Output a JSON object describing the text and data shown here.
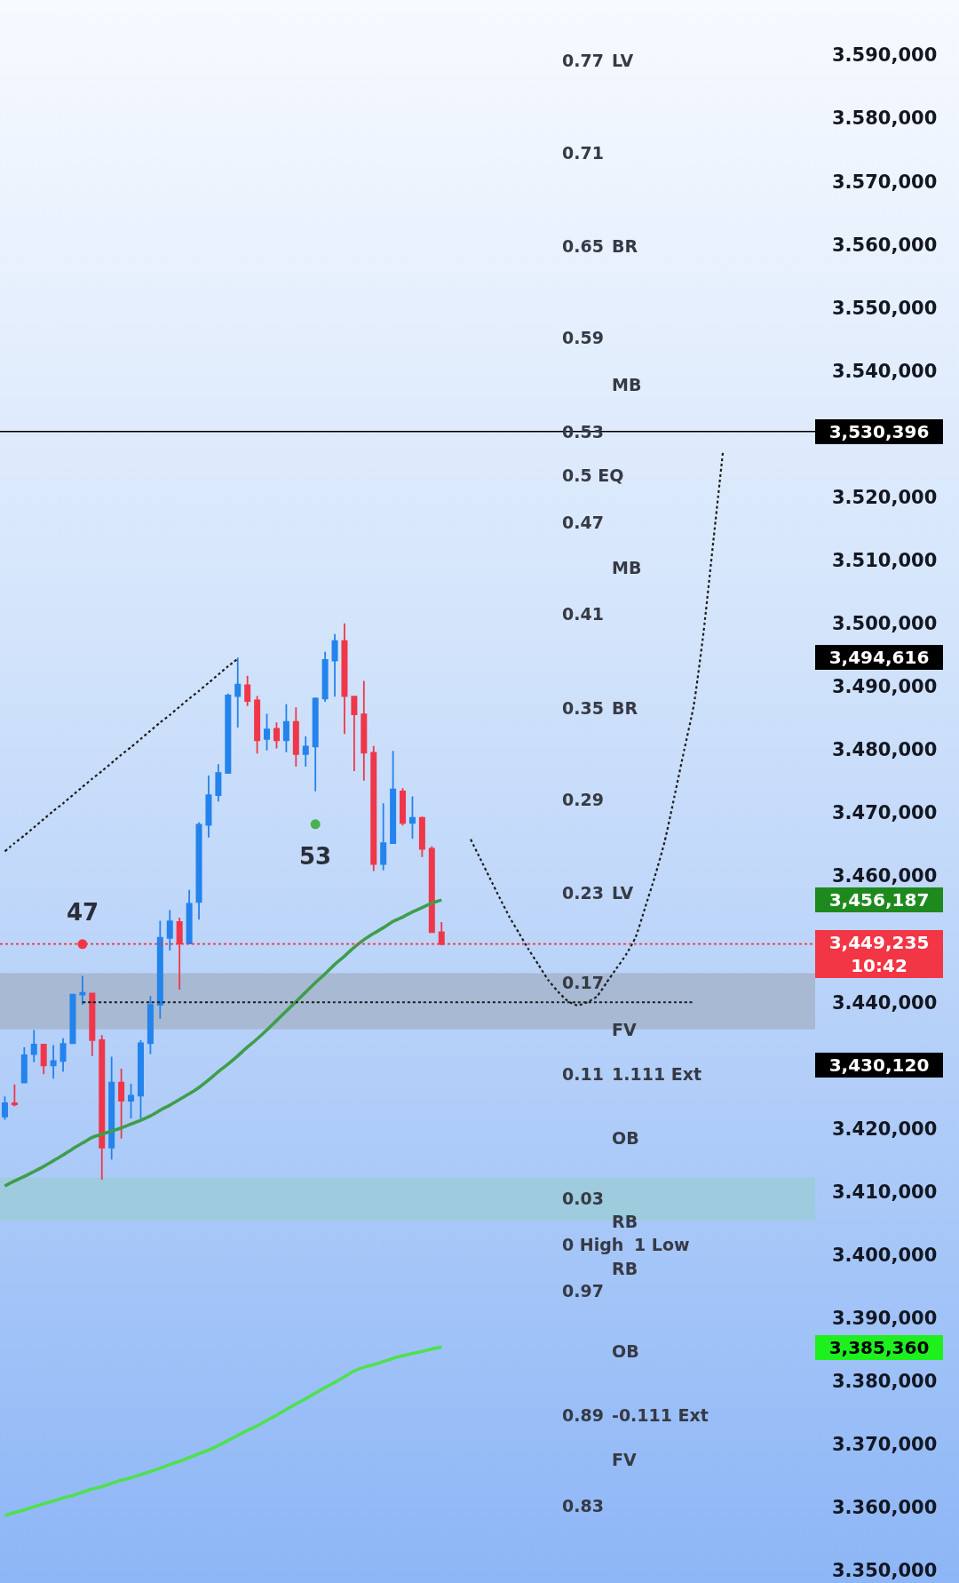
{
  "chart_data": {
    "type": "candlestick",
    "categories": [
      null,
      null,
      null,
      null,
      null,
      null,
      null,
      null,
      null,
      null,
      null,
      null,
      null,
      null,
      null,
      null,
      null,
      null,
      null,
      null,
      null,
      null,
      null,
      null,
      null,
      null,
      null,
      null,
      null,
      null,
      null,
      null,
      null,
      null,
      null,
      null,
      null,
      null,
      null,
      null,
      null,
      null,
      null,
      null,
      null,
      null,
      null,
      null,
      null,
      null,
      null,
      null,
      null,
      null,
      null,
      null,
      null,
      null,
      null,
      null,
      null,
      null,
      null,
      null,
      null,
      null,
      null,
      null,
      null,
      null,
      null,
      null,
      null,
      null,
      null,
      null,
      null,
      null,
      null,
      null,
      null,
      null,
      null,
      null
    ],
    "ohlc": [
      [
        3421.9,
        3425.1,
        3421.4,
        3424.0
      ],
      [
        3424.0,
        3427.0,
        3423.5,
        3423.8
      ],
      [
        3427.3,
        3432.9,
        3427.3,
        3431.6
      ],
      [
        3431.8,
        3435.6,
        3430.5,
        3433.3
      ],
      [
        3433.3,
        3433.3,
        3428.6,
        3430.0
      ],
      [
        3430.0,
        3433.2,
        3427.9,
        3430.7
      ],
      [
        3430.7,
        3434.3,
        3429.0,
        3433.4
      ],
      [
        3433.5,
        3441.2,
        3433.5,
        3441.2
      ],
      [
        3441.2,
        3444.2,
        3439.6,
        3441.5
      ],
      [
        3441.4,
        3441.4,
        3431.5,
        3434.0
      ],
      [
        3434.0,
        3434.8,
        3411.9,
        3417.0
      ],
      [
        3417.0,
        3431.4,
        3415.1,
        3427.3
      ],
      [
        3427.3,
        3429.5,
        3418.4,
        3424.4
      ],
      [
        3424.4,
        3427.1,
        3421.6,
        3425.2
      ],
      [
        3425.2,
        3434.0,
        3421.6,
        3433.5
      ],
      [
        3433.5,
        3441.0,
        3431.8,
        3439.6
      ],
      [
        3439.6,
        3452.9,
        3437.4,
        3450.2
      ],
      [
        3450.2,
        3454.6,
        3448.2,
        3452.8
      ],
      [
        3452.7,
        3453.4,
        3442.0,
        3449.3
      ],
      [
        3449.3,
        3457.8,
        3449.3,
        3455.6
      ],
      [
        3455.9,
        3468.5,
        3453.1,
        3468.1
      ],
      [
        3468.1,
        3475.9,
        3466.1,
        3472.8
      ],
      [
        3472.8,
        3477.7,
        3471.8,
        3476.3
      ],
      [
        3476.3,
        3488.9,
        3476.3,
        3488.6
      ],
      [
        3488.5,
        3494.6,
        3483.5,
        3490.3
      ],
      [
        3490.2,
        3491.7,
        3486.9,
        3487.7
      ],
      [
        3487.8,
        3488.5,
        3479.4,
        3481.5
      ],
      [
        3481.7,
        3485.7,
        3479.9,
        3483.2
      ],
      [
        3483.3,
        3484.3,
        3480.2,
        3481.5
      ],
      [
        3481.5,
        3487.2,
        3479.6,
        3484.4
      ],
      [
        3484.4,
        3486.7,
        3477.3,
        3479.3
      ],
      [
        3479.3,
        3482.1,
        3477.3,
        3480.5
      ],
      [
        3480.5,
        3488.3,
        3473.4,
        3488.1
      ],
      [
        3488.1,
        3495.5,
        3487.6,
        3494.2
      ],
      [
        3494.1,
        3498.3,
        3488.4,
        3497.2
      ],
      [
        3497.2,
        3500.0,
        3482.5,
        3488.5
      ],
      [
        3488.4,
        3488.4,
        3476.6,
        3485.6
      ],
      [
        3485.6,
        3490.9,
        3475.1,
        3479.5
      ],
      [
        3479.5,
        3480.6,
        3460.8,
        3461.9
      ],
      [
        3461.9,
        3471.5,
        3460.9,
        3465.2
      ],
      [
        3465.2,
        3479.8,
        3465.1,
        3473.7
      ],
      [
        3473.4,
        3473.9,
        3468.0,
        3468.4
      ],
      [
        3468.4,
        3472.6,
        3465.9,
        3469.2
      ],
      [
        3469.2,
        3469.4,
        3463.0,
        3464.3
      ],
      [
        3464.3,
        3464.7,
        3451.1,
        3451.1
      ],
      [
        3451.1,
        3452.7,
        3449.0,
        3449.235
      ],
      null,
      null,
      null,
      null,
      null,
      null,
      null,
      null,
      null,
      null,
      null,
      null,
      null,
      null,
      null,
      null,
      null,
      null,
      null,
      null,
      null,
      null,
      null,
      null,
      null,
      null,
      null,
      null,
      null,
      null,
      null,
      null,
      null,
      null,
      null,
      null,
      null,
      null
    ],
    "ylim": [
      3350,
      3590
    ],
    "yticks": [
      {
        "value": 3350,
        "label": "3.350,000"
      },
      {
        "value": 3360,
        "label": "3.360,000"
      },
      {
        "value": 3370,
        "label": "3.370,000"
      },
      {
        "value": 3380,
        "label": "3.380,000"
      },
      {
        "value": 3390,
        "label": "3.390,000"
      },
      {
        "value": 3400,
        "label": "3.400,000"
      },
      {
        "value": 3410,
        "label": "3.410,000"
      },
      {
        "value": 3420,
        "label": "3.420,000"
      },
      {
        "value": 3440,
        "label": "3.440,000"
      },
      {
        "value": 3460,
        "label": "3.460,000"
      },
      {
        "value": 3470,
        "label": "3.470,000"
      },
      {
        "value": 3480,
        "label": "3.480,000"
      },
      {
        "value": 3490,
        "label": "3.490,000"
      },
      {
        "value": 3500,
        "label": "3.500,000"
      },
      {
        "value": 3510,
        "label": "3.510,000"
      },
      {
        "value": 3520,
        "label": "3.520,000"
      },
      {
        "value": 3540,
        "label": "3.540,000"
      },
      {
        "value": 3550,
        "label": "3.550,000"
      },
      {
        "value": 3560,
        "label": "3.560,000"
      },
      {
        "value": 3570,
        "label": "3.570,000"
      },
      {
        "value": 3580,
        "label": "3.580,000"
      },
      {
        "value": 3590,
        "label": "3.590,000"
      }
    ],
    "tick_labels": "y",
    "series": [
      {
        "type": "line",
        "color": "#3f9d4b",
        "line_style": "solid",
        "values": [
          3410.9,
          3411.7,
          3412.4,
          3413.2,
          3414.0,
          3414.9,
          3415.8,
          3416.8,
          3417.7,
          3418.6,
          3419.1,
          3419.6,
          3420.1,
          3420.7,
          3421.3,
          3422.0,
          3422.9,
          3423.7,
          3424.6,
          3425.5,
          3426.5,
          3427.7,
          3429.0,
          3430.2,
          3431.5,
          3432.9,
          3434.2,
          3435.6,
          3437.1,
          3438.6,
          3440.1,
          3441.6,
          3443.1,
          3444.5,
          3446.0,
          3447.3,
          3448.7,
          3449.9,
          3450.9,
          3451.8,
          3452.8,
          3453.5,
          3454.3,
          3455.0,
          3455.7,
          3456.2,
          null,
          null,
          null,
          null,
          null,
          null,
          null,
          null,
          null,
          null,
          null,
          null,
          null,
          null,
          null,
          null,
          null,
          null,
          null,
          null,
          null,
          null,
          null,
          null,
          null,
          null,
          null,
          null,
          null,
          null,
          null,
          null,
          null,
          null,
          null,
          null,
          null,
          null
        ]
      },
      {
        "type": "line",
        "color": "#4fe04f",
        "line_style": "solid",
        "values": [
          3358.7,
          3359.2,
          3359.6,
          3360.1,
          3360.6,
          3361.0,
          3361.5,
          3361.9,
          3362.4,
          3362.9,
          3363.3,
          3363.8,
          3364.3,
          3364.7,
          3365.2,
          3365.7,
          3366.2,
          3366.8,
          3367.3,
          3367.9,
          3368.5,
          3369.1,
          3369.8,
          3370.6,
          3371.4,
          3372.2,
          3372.9,
          3373.8,
          3374.6,
          3375.5,
          3376.4,
          3377.2,
          3378.1,
          3379.0,
          3379.8,
          3380.7,
          3381.6,
          3382.2,
          3382.6,
          3383.1,
          3383.6,
          3384.0,
          3384.4,
          3384.7,
          3385.1,
          3385.4,
          null,
          null,
          null,
          null,
          null,
          null,
          null,
          null,
          null,
          null,
          null,
          null,
          null,
          null,
          null,
          null,
          null,
          null,
          null,
          null,
          null,
          null,
          null,
          null,
          null,
          null,
          null,
          null,
          null,
          null,
          null,
          null,
          null,
          null,
          null,
          null,
          null,
          null
        ]
      },
      {
        "type": "line",
        "color": "#1c1c1c",
        "line_style": "dotted",
        "values": [
          3463.9,
          3465.2,
          3466.4,
          3467.7,
          3469.0,
          3470.3,
          3471.5,
          3472.8,
          3474.1,
          3475.4,
          3476.6,
          3477.9,
          3479.2,
          3480.4,
          3481.7,
          3483.0,
          3484.3,
          3485.5,
          3486.8,
          3488.1,
          3489.3,
          3490.6,
          3491.9,
          3493.2,
          3494.4,
          null,
          null,
          null,
          null,
          null,
          null,
          null,
          null,
          null,
          null,
          null,
          null,
          null,
          null,
          null,
          null,
          null,
          null,
          null,
          null,
          null,
          null,
          null,
          null,
          null,
          null,
          null,
          null,
          null,
          null,
          null,
          null,
          null,
          null,
          null,
          null,
          null,
          null,
          null,
          null,
          null,
          null,
          null,
          null,
          null,
          null,
          null,
          null,
          null,
          null,
          null,
          null,
          null,
          null,
          null,
          null,
          null,
          null,
          null
        ]
      },
      {
        "type": "line",
        "color": "#1c1c1c",
        "line_style": "dotted",
        "values": [
          null,
          null,
          null,
          null,
          null,
          null,
          null,
          null,
          3440,
          3440,
          3440,
          3440,
          3440,
          3440,
          3440,
          3440,
          3440,
          3440,
          3440,
          3440,
          3440,
          3440,
          3440,
          3440,
          3440,
          3440,
          3440,
          3440,
          3440,
          3440,
          3440,
          3440,
          3440,
          3440,
          3440,
          3440,
          3440,
          3440,
          3440,
          3440,
          3440,
          3440,
          3440,
          3440,
          3440,
          3440,
          3440,
          3440,
          3440,
          3440,
          3440,
          3440,
          3440,
          3440,
          3440,
          3440,
          3440,
          3440,
          3440,
          3440,
          3440,
          3440,
          3440,
          3440,
          3440,
          3440,
          3440,
          3440,
          3440,
          3440,
          3440,
          3440,
          null,
          null,
          null,
          null,
          null,
          null,
          null,
          null,
          null,
          null,
          null,
          null
        ]
      },
      {
        "type": "line",
        "color": "#1c1c1c",
        "line_style": "dotted",
        "values": [
          null,
          null,
          null,
          null,
          null,
          null,
          null,
          null,
          null,
          null,
          null,
          null,
          null,
          null,
          null,
          null,
          null,
          null,
          null,
          null,
          null,
          null,
          null,
          null,
          null,
          null,
          null,
          null,
          null,
          null,
          null,
          null,
          null,
          null,
          null,
          null,
          null,
          null,
          null,
          null,
          null,
          null,
          null,
          null,
          null,
          null,
          null,
          null,
          3465.8,
          3462.7,
          3459.6,
          3456.5,
          3453.5,
          3450.9,
          3448.3,
          3445.9,
          3443.5,
          3441.7,
          3440.2,
          3439.5,
          3440.0,
          3440.9,
          3443.1,
          3445.3,
          3447.5,
          3450.3,
          3455.1,
          3460.0,
          3465.5,
          3472.6,
          3479.9,
          3487.1,
          3498.6,
          3512.9,
          3527.2,
          null,
          null,
          null,
          null,
          null,
          null,
          null,
          null,
          null
        ]
      },
      {
        "type": "scatter",
        "marker": "circle",
        "color": "#f23645",
        "values": [
          null,
          null,
          null,
          null,
          null,
          null,
          null,
          null,
          3449.2,
          null,
          null,
          null,
          null,
          null,
          null,
          null,
          null,
          null,
          null,
          null,
          null,
          null,
          null,
          null,
          null,
          null,
          null,
          null,
          null,
          null,
          null,
          null,
          null,
          null,
          null,
          null,
          null,
          null,
          null,
          null,
          null,
          null,
          null,
          null,
          null,
          null,
          null,
          null,
          null,
          null,
          null,
          null,
          null,
          null,
          null,
          null,
          null,
          null,
          null,
          null,
          null,
          null,
          null,
          null,
          null,
          null,
          null,
          null,
          null,
          null,
          null,
          null,
          null,
          null,
          null,
          null,
          null,
          null,
          null,
          null,
          null,
          null,
          null,
          null
        ]
      },
      {
        "type": "scatter",
        "marker": "circle",
        "color": "#4caf50",
        "values": [
          null,
          null,
          null,
          null,
          null,
          null,
          null,
          null,
          null,
          null,
          null,
          null,
          null,
          null,
          null,
          null,
          null,
          null,
          null,
          null,
          null,
          null,
          null,
          null,
          null,
          null,
          null,
          null,
          null,
          null,
          null,
          null,
          3468.2,
          null,
          null,
          null,
          null,
          null,
          null,
          null,
          null,
          null,
          null,
          null,
          null,
          null,
          null,
          null,
          null,
          null,
          null,
          null,
          null,
          null,
          null,
          null,
          null,
          null,
          null,
          null,
          null,
          null,
          null,
          null,
          null,
          null,
          null,
          null,
          null,
          null,
          null,
          null,
          null,
          null,
          null,
          null,
          null,
          null,
          null,
          null,
          null,
          null,
          null,
          null
        ]
      }
    ],
    "annotations": [
      "0.77",
      "LV",
      "0.71",
      "0.65",
      "BR",
      "0.59",
      "MB",
      "0.53",
      "0.5 EQ",
      "0.47",
      "MB",
      "0.41",
      "0.35",
      "BR",
      "0.29",
      "0.23",
      "LV",
      "0.17",
      "FV",
      "0.11",
      "1.111 Ext",
      "OB",
      "0.03",
      "RB",
      "0 High",
      "1 Low",
      "RB",
      "0.97",
      "OB",
      "0.89",
      "-0.111 Ext",
      "FV",
      "0.83",
      "47",
      "53",
      "3,494,616",
      "3,456,187",
      "3,430,120",
      "3,385,360"
    ],
    "ref_lines": [
      {
        "axis": "y",
        "value": 3530.396,
        "label": "3,530,396",
        "color": "#000000",
        "line_style": "solid"
      },
      {
        "axis": "y",
        "value": 3449.235,
        "label": "3,449,235\n10:42",
        "color": "#f23645",
        "line_style": "dotted"
      }
    ],
    "bands": [
      {
        "axis": "y",
        "from": 3435.7,
        "to": 3444.6,
        "color": "#a7b9d3"
      },
      {
        "axis": "y",
        "from": 3405.5,
        "to": 3412.2,
        "color": "#9ecbdd"
      }
    ]
  }
}
